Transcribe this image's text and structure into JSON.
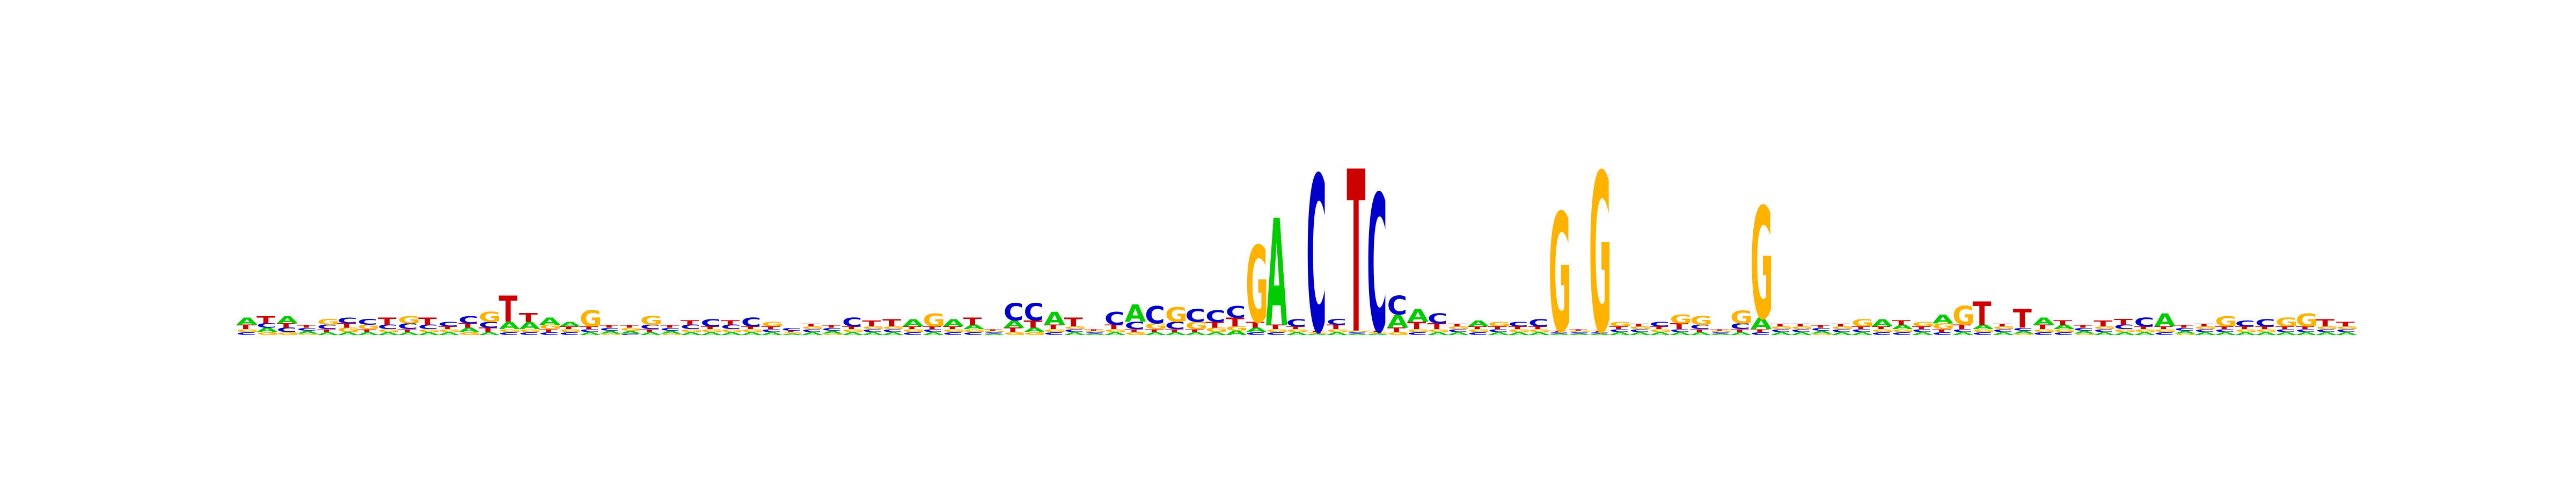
{
  "chart_data": {
    "type": "sequence-logo",
    "ylim": [
      0,
      2
    ],
    "grid": false,
    "legend": "none",
    "colors": {
      "A": "#00cc00",
      "C": "#0000cc",
      "G": "#ffb300",
      "T": "#cc0000"
    },
    "alphabet": [
      "A",
      "C",
      "G",
      "T"
    ],
    "positions": [
      {
        "A": 0.05,
        "C": 0.02,
        "G": 0.02,
        "T": 0.03
      },
      {
        "A": 0.03,
        "C": 0.03,
        "G": 0.02,
        "T": 0.05
      },
      {
        "A": 0.05,
        "C": 0.03,
        "G": 0.02,
        "T": 0.03
      },
      {
        "A": 0.02,
        "C": 0.02,
        "G": 0.01,
        "T": 0.02
      },
      {
        "A": 0.02,
        "C": 0.03,
        "G": 0.04,
        "T": 0.02
      },
      {
        "A": 0.02,
        "C": 0.04,
        "G": 0.03,
        "T": 0.03
      },
      {
        "A": 0.02,
        "C": 0.04,
        "G": 0.03,
        "T": 0.02
      },
      {
        "A": 0.02,
        "C": 0.03,
        "G": 0.02,
        "T": 0.05
      },
      {
        "A": 0.02,
        "C": 0.04,
        "G": 0.05,
        "T": 0.02
      },
      {
        "A": 0.02,
        "C": 0.03,
        "G": 0.02,
        "T": 0.05
      },
      {
        "A": 0.02,
        "C": 0.03,
        "G": 0.02,
        "T": 0.02
      },
      {
        "A": 0.03,
        "C": 0.05,
        "G": 0.02,
        "T": 0.03
      },
      {
        "A": 0.02,
        "C": 0.04,
        "G": 0.07,
        "T": 0.03
      },
      {
        "A": 0.05,
        "C": 0.02,
        "G": 0.02,
        "T": 0.18
      },
      {
        "A": 0.05,
        "C": 0.02,
        "G": 0.02,
        "T": 0.06
      },
      {
        "A": 0.05,
        "C": 0.02,
        "G": 0.03,
        "T": 0.02
      },
      {
        "A": 0.03,
        "C": 0.02,
        "G": 0.02,
        "T": 0.02
      },
      {
        "A": 0.02,
        "C": 0.02,
        "G": 0.11,
        "T": 0.02
      },
      {
        "A": 0.02,
        "C": 0.02,
        "G": 0.01,
        "T": 0.02
      },
      {
        "A": 0.02,
        "C": 0.01,
        "G": 0.02,
        "T": 0.02
      },
      {
        "A": 0.02,
        "C": 0.03,
        "G": 0.06,
        "T": 0.02
      },
      {
        "A": 0.02,
        "C": 0.02,
        "G": 0.01,
        "T": 0.02
      },
      {
        "A": 0.02,
        "C": 0.03,
        "G": 0.02,
        "T": 0.03
      },
      {
        "A": 0.02,
        "C": 0.05,
        "G": 0.02,
        "T": 0.02
      },
      {
        "A": 0.02,
        "C": 0.03,
        "G": 0.02,
        "T": 0.03
      },
      {
        "A": 0.02,
        "C": 0.06,
        "G": 0.02,
        "T": 0.02
      },
      {
        "A": 0.02,
        "C": 0.02,
        "G": 0.03,
        "T": 0.02
      },
      {
        "A": 0.01,
        "C": 0.02,
        "G": 0.01,
        "T": 0.01
      },
      {
        "A": 0.02,
        "C": 0.02,
        "G": 0.02,
        "T": 0.02
      },
      {
        "A": 0.02,
        "C": 0.02,
        "G": 0.01,
        "T": 0.02
      },
      {
        "A": 0.02,
        "C": 0.06,
        "G": 0.02,
        "T": 0.02
      },
      {
        "A": 0.02,
        "C": 0.02,
        "G": 0.02,
        "T": 0.04
      },
      {
        "A": 0.02,
        "C": 0.02,
        "G": 0.02,
        "T": 0.05
      },
      {
        "A": 0.05,
        "C": 0.02,
        "G": 0.02,
        "T": 0.02
      },
      {
        "A": 0.02,
        "C": 0.02,
        "G": 0.09,
        "T": 0.02
      },
      {
        "A": 0.05,
        "C": 0.02,
        "G": 0.02,
        "T": 0.02
      },
      {
        "A": 0.03,
        "C": 0.02,
        "G": 0.02,
        "T": 0.05
      },
      {
        "A": 0.01,
        "C": 0.01,
        "G": 0.01,
        "T": 0.01
      },
      {
        "A": 0.05,
        "C": 0.12,
        "G": 0.02,
        "T": 0.03
      },
      {
        "A": 0.03,
        "C": 0.12,
        "G": 0.02,
        "T": 0.05
      },
      {
        "A": 0.09,
        "C": 0.02,
        "G": 0.02,
        "T": 0.03
      },
      {
        "A": 0.02,
        "C": 0.02,
        "G": 0.02,
        "T": 0.06
      },
      {
        "A": 0.01,
        "C": 0.01,
        "G": 0.01,
        "T": 0.01
      },
      {
        "A": 0.02,
        "C": 0.09,
        "G": 0.02,
        "T": 0.03
      },
      {
        "A": 0.12,
        "C": 0.05,
        "G": 0.02,
        "T": 0.02
      },
      {
        "A": 0.02,
        "C": 0.12,
        "G": 0.04,
        "T": 0.02
      },
      {
        "A": 0.02,
        "C": 0.05,
        "G": 0.1,
        "T": 0.02
      },
      {
        "A": 0.02,
        "C": 0.09,
        "G": 0.05,
        "T": 0.02
      },
      {
        "A": 0.02,
        "C": 0.08,
        "G": 0.03,
        "T": 0.04
      },
      {
        "A": 0.03,
        "C": 0.08,
        "G": 0.03,
        "T": 0.06
      },
      {
        "A": 0.03,
        "C": 0.02,
        "G": 0.53,
        "T": 0.04
      },
      {
        "A": 0.74,
        "C": 0.02,
        "G": 0.02,
        "T": 0.03
      },
      {
        "A": 0.02,
        "C": 0.05,
        "G": 0.02,
        "T": 0.02
      },
      {
        "A": 0.01,
        "C": 1.08,
        "G": 0.01,
        "T": 0.01
      },
      {
        "A": 0.02,
        "C": 0.04,
        "G": 0.02,
        "T": 0.03
      },
      {
        "A": 0.01,
        "C": 0.01,
        "G": 0.01,
        "T": 1.12
      },
      {
        "A": 0.01,
        "C": 0.95,
        "G": 0.01,
        "T": 0.01
      },
      {
        "A": 0.09,
        "C": 0.13,
        "G": 0.02,
        "T": 0.03
      },
      {
        "A": 0.09,
        "C": 0.02,
        "G": 0.02,
        "T": 0.05
      },
      {
        "A": 0.02,
        "C": 0.07,
        "G": 0.02,
        "T": 0.04
      },
      {
        "A": 0.02,
        "C": 0.02,
        "G": 0.02,
        "T": 0.02
      },
      {
        "A": 0.04,
        "C": 0.02,
        "G": 0.02,
        "T": 0.02
      },
      {
        "A": 0.02,
        "C": 0.02,
        "G": 0.03,
        "T": 0.02
      },
      {
        "A": 0.02,
        "C": 0.03,
        "G": 0.02,
        "T": 0.02
      },
      {
        "A": 0.02,
        "C": 0.05,
        "G": 0.02,
        "T": 0.02
      },
      {
        "A": 0.01,
        "C": 0.01,
        "G": 0.82,
        "T": 0.01
      },
      {
        "A": 0.01,
        "C": 0.01,
        "G": 0.01,
        "T": 0.01
      },
      {
        "A": 0.01,
        "C": 0.01,
        "G": 1.1,
        "T": 0.01
      },
      {
        "A": 0.02,
        "C": 0.02,
        "G": 0.03,
        "T": 0.02
      },
      {
        "A": 0.02,
        "C": 0.02,
        "G": 0.02,
        "T": 0.02
      },
      {
        "A": 0.02,
        "C": 0.03,
        "G": 0.02,
        "T": 0.02
      },
      {
        "A": 0.02,
        "C": 0.02,
        "G": 0.06,
        "T": 0.04
      },
      {
        "A": 0.02,
        "C": 0.03,
        "G": 0.06,
        "T": 0.02
      },
      {
        "A": 0.01,
        "C": 0.01,
        "G": 0.01,
        "T": 0.01
      },
      {
        "A": 0.02,
        "C": 0.04,
        "G": 0.09,
        "T": 0.02
      },
      {
        "A": 0.08,
        "C": 0.02,
        "G": 0.77,
        "T": 0.02
      },
      {
        "A": 0.02,
        "C": 0.02,
        "G": 0.02,
        "T": 0.02
      },
      {
        "A": 0.02,
        "C": 0.02,
        "G": 0.02,
        "T": 0.02
      },
      {
        "A": 0.02,
        "C": 0.02,
        "G": 0.01,
        "T": 0.02
      },
      {
        "A": 0.02,
        "C": 0.02,
        "G": 0.02,
        "T": 0.02
      },
      {
        "A": 0.02,
        "C": 0.02,
        "G": 0.05,
        "T": 0.02
      },
      {
        "A": 0.05,
        "C": 0.02,
        "G": 0.02,
        "T": 0.02
      },
      {
        "A": 0.03,
        "C": 0.02,
        "G": 0.02,
        "T": 0.03
      },
      {
        "A": 0.02,
        "C": 0.02,
        "G": 0.03,
        "T": 0.02
      },
      {
        "A": 0.06,
        "C": 0.02,
        "G": 0.04,
        "T": 0.02
      },
      {
        "A": 0.02,
        "C": 0.02,
        "G": 0.13,
        "T": 0.03
      },
      {
        "A": 0.03,
        "C": 0.02,
        "G": 0.02,
        "T": 0.16
      },
      {
        "A": 0.02,
        "C": 0.02,
        "G": 0.02,
        "T": 0.02
      },
      {
        "A": 0.02,
        "C": 0.02,
        "G": 0.01,
        "T": 0.13
      },
      {
        "A": 0.05,
        "C": 0.02,
        "G": 0.02,
        "T": 0.03
      },
      {
        "A": 0.03,
        "C": 0.02,
        "G": 0.02,
        "T": 0.03
      },
      {
        "A": 0.02,
        "C": 0.02,
        "G": 0.01,
        "T": 0.02
      },
      {
        "A": 0.02,
        "C": 0.02,
        "G": 0.02,
        "T": 0.04
      },
      {
        "A": 0.02,
        "C": 0.03,
        "G": 0.02,
        "T": 0.04
      },
      {
        "A": 0.02,
        "C": 0.06,
        "G": 0.02,
        "T": 0.02
      },
      {
        "A": 0.09,
        "C": 0.02,
        "G": 0.02,
        "T": 0.02
      },
      {
        "A": 0.02,
        "C": 0.02,
        "G": 0.01,
        "T": 0.02
      },
      {
        "A": 0.02,
        "C": 0.02,
        "G": 0.02,
        "T": 0.02
      },
      {
        "A": 0.02,
        "C": 0.02,
        "G": 0.07,
        "T": 0.02
      },
      {
        "A": 0.02,
        "C": 0.04,
        "G": 0.02,
        "T": 0.02
      },
      {
        "A": 0.02,
        "C": 0.05,
        "G": 0.02,
        "T": 0.02
      },
      {
        "A": 0.02,
        "C": 0.02,
        "G": 0.06,
        "T": 0.02
      },
      {
        "A": 0.02,
        "C": 0.02,
        "G": 0.09,
        "T": 0.02
      },
      {
        "A": 0.02,
        "C": 0.02,
        "G": 0.02,
        "T": 0.05
      },
      {
        "A": 0.02,
        "C": 0.02,
        "G": 0.02,
        "T": 0.03
      }
    ]
  }
}
